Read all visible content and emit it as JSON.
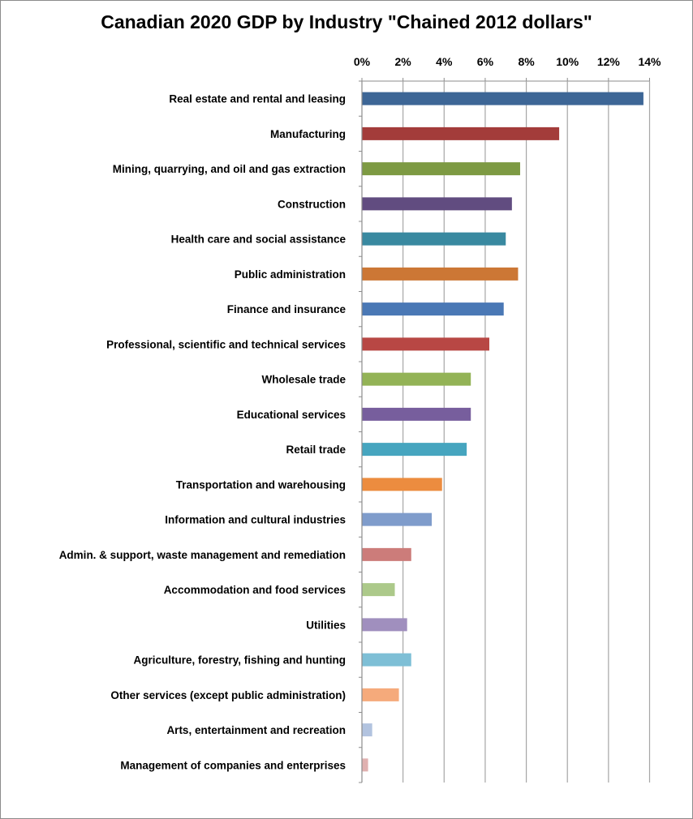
{
  "chart_data": {
    "type": "bar",
    "orientation": "horizontal",
    "title": "Canadian 2020 GDP by Industry \"Chained 2012 dollars\"",
    "xlabel": "",
    "ylabel": "",
    "xlim": [
      0,
      14
    ],
    "x_ticks": [
      "0%",
      "2%",
      "4%",
      "6%",
      "8%",
      "10%",
      "12%",
      "14%"
    ],
    "x_tick_values": [
      0,
      2,
      4,
      6,
      8,
      10,
      12,
      14
    ],
    "x_axis_position": "top",
    "grid": true,
    "legend": "none",
    "unit": "percent of GDP",
    "categories": [
      "Real estate and rental and leasing",
      "Manufacturing",
      "Mining, quarrying, and oil and gas extraction",
      "Construction",
      "Health care and social assistance",
      "Public administration",
      "Finance and insurance",
      "Professional, scientific and technical services",
      "Wholesale trade",
      "Educational services",
      "Retail trade",
      "Transportation and warehousing",
      "Information and cultural industries",
      "Admin. & support, waste management and remediation",
      "Accommodation and food services",
      "Utilities",
      "Agriculture, forestry, fishing and hunting",
      "Other services (except public administration)",
      "Arts, entertainment and recreation",
      "Management of companies and enterprises"
    ],
    "values": [
      13.7,
      9.6,
      7.7,
      7.3,
      7.0,
      7.6,
      6.9,
      6.2,
      5.3,
      5.3,
      5.1,
      3.9,
      3.4,
      2.4,
      1.6,
      2.2,
      2.4,
      1.8,
      0.5,
      0.3
    ],
    "colors": [
      "#3d6696",
      "#a33c3a",
      "#7d9a43",
      "#614c80",
      "#3989a0",
      "#cc7735",
      "#4a78b5",
      "#b84744",
      "#93b356",
      "#775e9d",
      "#46a5bf",
      "#ec8c3f",
      "#7f9ccb",
      "#cc7c7a",
      "#acc98a",
      "#a08fbe",
      "#7ebfd6",
      "#f5aa7b",
      "#b2c3df",
      "#e0b1b0"
    ]
  }
}
